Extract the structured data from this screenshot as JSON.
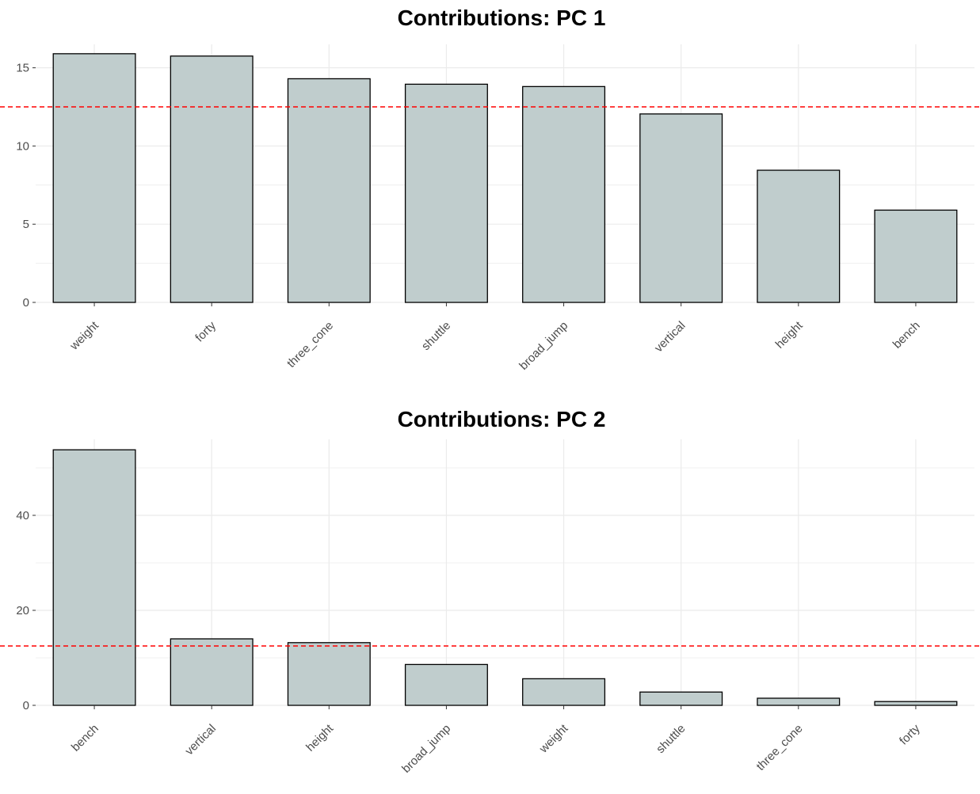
{
  "chart_data": [
    {
      "type": "bar",
      "title": "Contributions: PC 1",
      "categories": [
        "weight",
        "forty",
        "three_cone",
        "shuttle",
        "broad_jump",
        "vertical",
        "height",
        "bench"
      ],
      "values": [
        15.9,
        15.75,
        14.3,
        13.95,
        13.8,
        12.05,
        8.45,
        5.9
      ],
      "reference_line": 12.5,
      "ylim": [
        0,
        16.5
      ],
      "yticks": [
        0,
        5,
        10,
        15
      ],
      "xlabel": "",
      "ylabel": "",
      "grid": true,
      "colors": {
        "bar_fill": "#c0cdcd",
        "bar_stroke": "#000000",
        "reference_line": "#ff0000",
        "grid": "#ebebeb"
      }
    },
    {
      "type": "bar",
      "title": "Contributions: PC 2",
      "categories": [
        "bench",
        "vertical",
        "height",
        "broad_jump",
        "weight",
        "shuttle",
        "three_cone",
        "forty"
      ],
      "values": [
        53.8,
        14.0,
        13.2,
        8.6,
        5.6,
        2.8,
        1.5,
        0.8
      ],
      "reference_line": 12.5,
      "ylim": [
        0,
        56
      ],
      "yticks": [
        0,
        20,
        40
      ],
      "xlabel": "",
      "ylabel": "",
      "grid": true,
      "colors": {
        "bar_fill": "#c0cdcd",
        "bar_stroke": "#000000",
        "reference_line": "#ff0000",
        "grid": "#ebebeb"
      }
    }
  ]
}
